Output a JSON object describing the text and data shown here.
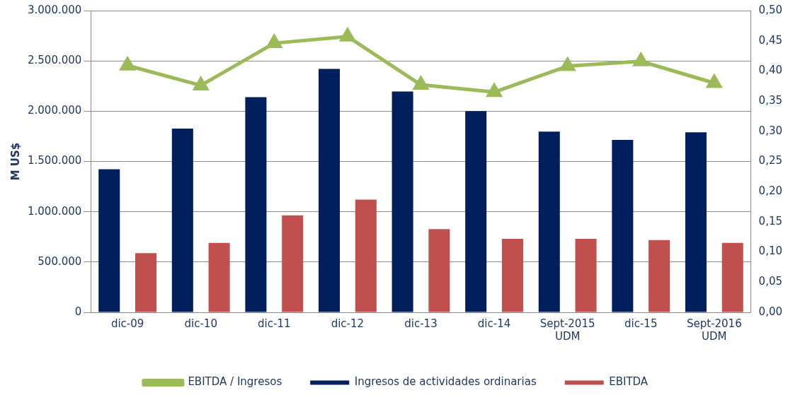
{
  "chart_data": {
    "type": "bar",
    "ylabel": "M US$",
    "categories": [
      "dic-09",
      "dic-10",
      "dic-11",
      "dic-12",
      "dic-13",
      "dic-14",
      "Sept-2015\nUDM",
      "dic-15",
      "Sept-2016\nUDM"
    ],
    "series": [
      {
        "name": "Ingresos de actividades ordinarias",
        "color": "#001f5c",
        "values": [
          1422000,
          1826000,
          2140000,
          2421000,
          2195000,
          2001000,
          1796000,
          1715000,
          1789000
        ]
      },
      {
        "name": "EBITDA",
        "color": "#c0504d",
        "values": [
          588000,
          691000,
          964000,
          1121000,
          827000,
          730000,
          730000,
          718000,
          690000
        ]
      },
      {
        "name": "EBITDA / Ingresos",
        "type": "line",
        "axis": "y2",
        "marker": "triangle",
        "color": "#9bbb59",
        "values": [
          0.409,
          0.376,
          0.446,
          0.457,
          0.377,
          0.365,
          0.408,
          0.416,
          0.38
        ]
      }
    ],
    "ylim": [
      0,
      3000000
    ],
    "yticks": [
      {
        "value": 0,
        "label": "0"
      },
      {
        "value": 500000,
        "label": "500.000"
      },
      {
        "value": 1000000,
        "label": "1.000.000"
      },
      {
        "value": 1500000,
        "label": "1.500.000"
      },
      {
        "value": 2000000,
        "label": "2.000.000"
      },
      {
        "value": 2500000,
        "label": "2.500.000"
      },
      {
        "value": 3000000,
        "label": "3.000.000"
      }
    ],
    "y2lim": [
      0,
      0.5
    ],
    "y2ticks": [
      {
        "value": 0,
        "label": "0,00"
      },
      {
        "value": 0.05,
        "label": "0,05"
      },
      {
        "value": 0.1,
        "label": "0,10"
      },
      {
        "value": 0.15,
        "label": "0,15"
      },
      {
        "value": 0.2,
        "label": "0,20"
      },
      {
        "value": 0.25,
        "label": "0,25"
      },
      {
        "value": 0.3,
        "label": "0,30"
      },
      {
        "value": 0.35,
        "label": "0,35"
      },
      {
        "value": 0.4,
        "label": "0,40"
      },
      {
        "value": 0.45,
        "label": "0,45"
      },
      {
        "value": 0.5,
        "label": "0,50"
      }
    ],
    "grid": "y",
    "legend": "bottom"
  }
}
